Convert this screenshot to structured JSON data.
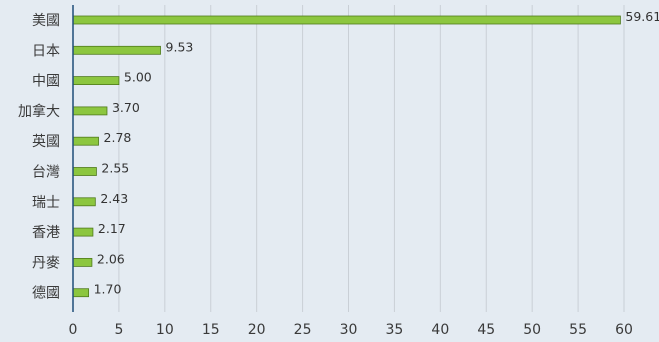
{
  "chart_data": {
    "type": "bar",
    "orientation": "horizontal",
    "categories": [
      "美國",
      "日本",
      "中國",
      "加拿大",
      "英國",
      "台灣",
      "瑞士",
      "香港",
      "丹麥",
      "德國"
    ],
    "values": [
      59.61,
      9.53,
      5.0,
      3.7,
      2.78,
      2.55,
      2.43,
      2.17,
      2.06,
      1.7
    ],
    "data_labels": [
      "59.61",
      "9.53",
      "5.00",
      "3.70",
      "2.78",
      "2.55",
      "2.43",
      "2.17",
      "2.06",
      "1.70"
    ],
    "x_ticks": [
      0,
      5,
      10,
      15,
      20,
      25,
      30,
      35,
      40,
      45,
      50,
      55,
      60
    ],
    "xlim": [
      0,
      60
    ],
    "title": "",
    "xlabel": "",
    "ylabel": "",
    "grid": "vertical",
    "legend": "none",
    "colors": {
      "bar_fill": "#8cc63f",
      "bar_stroke": "#4f7a1c",
      "grid": "#c9cfd6",
      "axis": "#1f4e79",
      "background": "#e4ebf2"
    }
  }
}
